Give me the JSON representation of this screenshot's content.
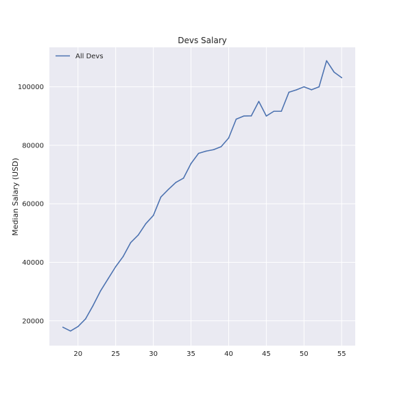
{
  "chart_data": {
    "type": "line",
    "title": "Devs Salary",
    "xlabel": "",
    "ylabel": "Median Salary (USD)",
    "xlim": [
      16.2,
      56.8
    ],
    "ylim": [
      11500,
      113500
    ],
    "xticks": [
      20,
      25,
      30,
      35,
      40,
      45,
      50,
      55
    ],
    "yticks": [
      20000,
      40000,
      60000,
      80000,
      100000
    ],
    "grid": true,
    "legend_position": "top-left",
    "background_color": "#EAEAF2",
    "grid_color": "#FFFFFF",
    "series": [
      {
        "name": "All Devs",
        "color": "#4C72B0",
        "x": [
          18,
          19,
          20,
          21,
          22,
          23,
          24,
          25,
          26,
          27,
          28,
          29,
          30,
          31,
          32,
          33,
          34,
          35,
          36,
          37,
          38,
          39,
          40,
          41,
          42,
          43,
          44,
          45,
          46,
          47,
          48,
          49,
          50,
          51,
          52,
          53,
          54,
          55
        ],
        "y": [
          17784,
          16500,
          18012,
          20628,
          25206,
          30252,
          34368,
          38496,
          42000,
          46752,
          49320,
          53200,
          56000,
          62316,
          64928,
          67317,
          68748,
          73752,
          77232,
          78000,
          78508,
          79536,
          82488,
          88935,
          90000,
          90056,
          95000,
          90000,
          91633,
          91660,
          98150,
          98964,
          100000,
          98988,
          100000,
          108923,
          105000,
          103117
        ]
      }
    ]
  }
}
